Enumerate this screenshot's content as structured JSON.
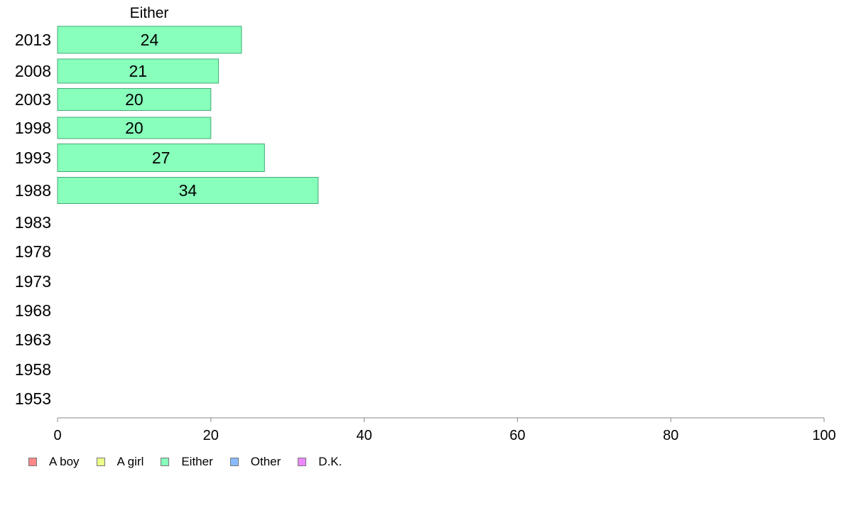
{
  "chart_data": {
    "type": "bar",
    "orientation": "horizontal",
    "title": "Either",
    "categories": [
      "2013",
      "2008",
      "2003",
      "1998",
      "1993",
      "1988",
      "1983",
      "1978",
      "1973",
      "1968",
      "1963",
      "1958",
      "1953"
    ],
    "series": [
      {
        "name": "Either",
        "color": "#88ffbb",
        "values": [
          24,
          21,
          20,
          20,
          27,
          34,
          null,
          null,
          null,
          null,
          null,
          null,
          null
        ]
      }
    ],
    "data_labels": [
      "24",
      "21",
      "20",
      "20",
      "27",
      "34",
      "",
      "",
      "",
      "",
      "",
      "",
      ""
    ],
    "xlim": [
      0,
      100
    ],
    "x_ticks": [
      0,
      20,
      40,
      60,
      80,
      100
    ],
    "grid": false,
    "legend_position": "bottom-left"
  },
  "legend": [
    {
      "label": "A boy",
      "color": "#ff8888"
    },
    {
      "label": "A girl",
      "color": "#eeff88"
    },
    {
      "label": "Either",
      "color": "#88ffbb"
    },
    {
      "label": "Other",
      "color": "#88bbff"
    },
    {
      "label": "D.K.",
      "color": "#ee88ff"
    }
  ],
  "colors": {
    "bar_stroke": "#44aa77",
    "axis": "#888888"
  }
}
